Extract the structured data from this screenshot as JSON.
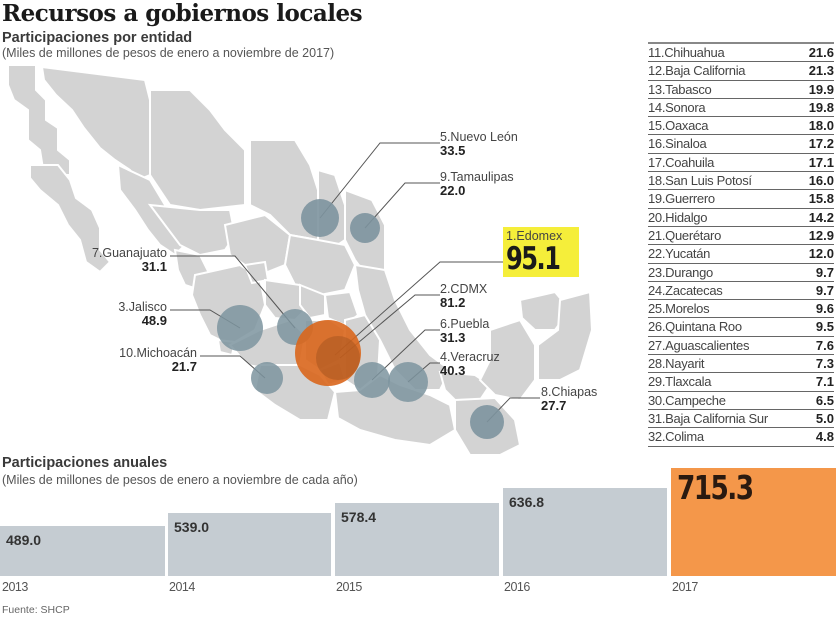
{
  "header": {
    "title": "Recursos a gobiernos locales",
    "subtitle": "Participaciones por entidad",
    "note": "(Miles de millones de pesos de enero a noviembre de 2017)"
  },
  "map": {
    "labels": [
      {
        "rank": 1,
        "name": "1.Edomex",
        "value": "95.1"
      },
      {
        "rank": 2,
        "name": "2.CDMX",
        "value": "81.2"
      },
      {
        "rank": 3,
        "name": "3.Jalisco",
        "value": "48.9"
      },
      {
        "rank": 4,
        "name": "4.Veracruz",
        "value": "40.3"
      },
      {
        "rank": 5,
        "name": "5.Nuevo León",
        "value": "33.5"
      },
      {
        "rank": 6,
        "name": "6.Puebla",
        "value": "31.3"
      },
      {
        "rank": 7,
        "name": "7.Guanajuato",
        "value": "31.1"
      },
      {
        "rank": 8,
        "name": "8.Chiapas",
        "value": "27.7"
      },
      {
        "rank": 9,
        "name": "9.Tamaulipas",
        "value": "22.0"
      },
      {
        "rank": 10,
        "name": "10.Michoacán",
        "value": "21.7"
      }
    ],
    "colors": {
      "land": "#d3d3d3",
      "bubble": "#7d949f",
      "highlight_bubble": "#d9661c",
      "highlight_label_bg": "#f5ee3a"
    }
  },
  "ranking": [
    {
      "name": "11.Chihuahua",
      "value": "21.6"
    },
    {
      "name": "12.Baja California",
      "value": "21.3"
    },
    {
      "name": "13.Tabasco",
      "value": "19.9"
    },
    {
      "name": "14.Sonora",
      "value": "19.8"
    },
    {
      "name": "15.Oaxaca",
      "value": "18.0"
    },
    {
      "name": "16.Sinaloa",
      "value": "17.2"
    },
    {
      "name": "17.Coahuila",
      "value": "17.1"
    },
    {
      "name": "18.San Luis Potosí",
      "value": "16.0"
    },
    {
      "name": "19.Guerrero",
      "value": "15.8"
    },
    {
      "name": "20.Hidalgo",
      "value": "14.2"
    },
    {
      "name": "21.Querétaro",
      "value": "12.9"
    },
    {
      "name": "22.Yucatán",
      "value": "12.0"
    },
    {
      "name": "23.Durango",
      "value": "9.7"
    },
    {
      "name": "24.Zacatecas",
      "value": "9.7"
    },
    {
      "name": "25.Morelos",
      "value": "9.6"
    },
    {
      "name": "26.Quintana Roo",
      "value": "9.5"
    },
    {
      "name": "27.Aguascalientes",
      "value": "7.6"
    },
    {
      "name": "28.Nayarit",
      "value": "7.3"
    },
    {
      "name": "29.Tlaxcala",
      "value": "7.1"
    },
    {
      "name": "30.Campeche",
      "value": "6.5"
    },
    {
      "name": "31.Baja California Sur",
      "value": "5.0"
    },
    {
      "name": "32.Colima",
      "value": "4.8"
    }
  ],
  "annual": {
    "title": "Participaciones anuales",
    "note": "(Miles de millones de pesos de enero a noviembre de cada año)",
    "bars": [
      {
        "year": "2013",
        "value": "489.0"
      },
      {
        "year": "2014",
        "value": "539.0"
      },
      {
        "year": "2015",
        "value": "578.4"
      },
      {
        "year": "2016",
        "value": "636.8"
      },
      {
        "year": "2017",
        "value": "715.3"
      }
    ]
  },
  "source": "Fuente: SHCP",
  "chart_data": [
    {
      "type": "bubble-map",
      "title": "Participaciones por entidad",
      "subtitle": "(Miles de millones de pesos de enero a noviembre de 2017)",
      "categories": [
        "Edomex",
        "CDMX",
        "Jalisco",
        "Veracruz",
        "Nuevo León",
        "Puebla",
        "Guanajuato",
        "Chiapas",
        "Tamaulipas",
        "Michoacán",
        "Chihuahua",
        "Baja California",
        "Tabasco",
        "Sonora",
        "Oaxaca",
        "Sinaloa",
        "Coahuila",
        "San Luis Potosí",
        "Guerrero",
        "Hidalgo",
        "Querétaro",
        "Yucatán",
        "Durango",
        "Zacatecas",
        "Morelos",
        "Quintana Roo",
        "Aguascalientes",
        "Nayarit",
        "Tlaxcala",
        "Campeche",
        "Baja California Sur",
        "Colima"
      ],
      "values": [
        95.1,
        81.2,
        48.9,
        40.3,
        33.5,
        31.3,
        31.1,
        27.7,
        22.0,
        21.7,
        21.6,
        21.3,
        19.9,
        19.8,
        18.0,
        17.2,
        17.1,
        16.0,
        15.8,
        14.2,
        12.9,
        12.0,
        9.7,
        9.7,
        9.6,
        9.5,
        7.6,
        7.3,
        7.1,
        6.5,
        5.0,
        4.8
      ],
      "highlight": "Edomex"
    },
    {
      "type": "bar",
      "title": "Participaciones anuales",
      "subtitle": "(Miles de millones de pesos de enero a noviembre de cada año)",
      "categories": [
        "2013",
        "2014",
        "2015",
        "2016",
        "2017"
      ],
      "values": [
        489.0,
        539.0,
        578.4,
        636.8,
        715.3
      ],
      "xlabel": "",
      "ylabel": "",
      "grid": false,
      "highlight": "2017",
      "colors": {
        "bar": "#c5ccd2",
        "highlight": "#f4974a"
      }
    }
  ]
}
